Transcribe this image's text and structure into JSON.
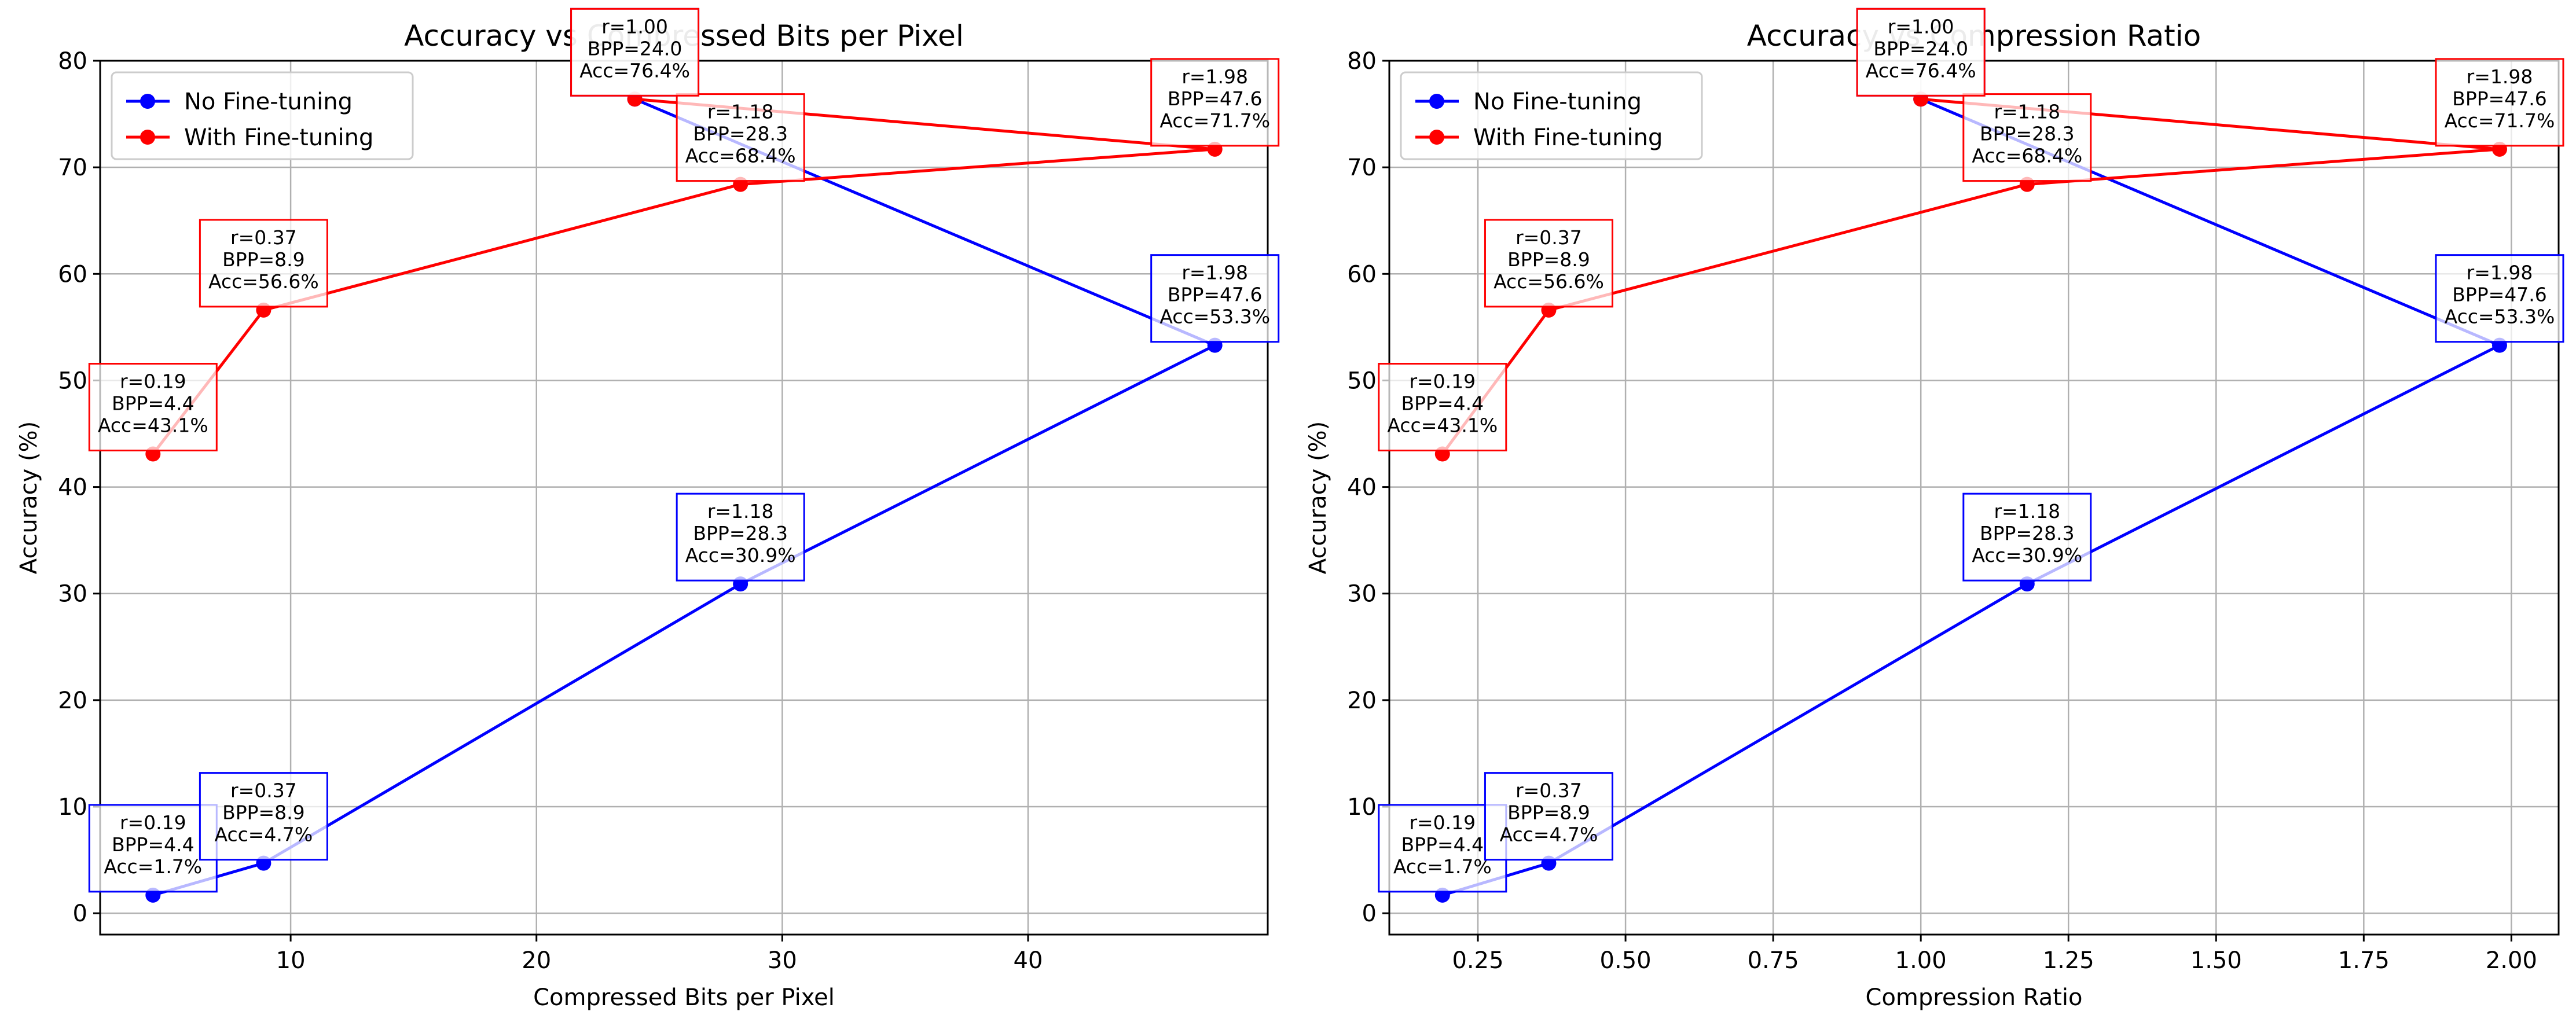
{
  "colors": {
    "no_finetune": "#0000ff",
    "with_finetune": "#ff0000",
    "grid": "#b0b0b0",
    "axes": "#000000"
  },
  "chart_data": [
    {
      "type": "line",
      "title": "Accuracy vs Compressed Bits per Pixel",
      "xlabel": "Compressed Bits per Pixel",
      "ylabel": "Accuracy (%)",
      "xlim": [
        2.25,
        49.75
      ],
      "ylim": [
        -2,
        80
      ],
      "xticks": [
        10,
        20,
        30,
        40
      ],
      "yticks": [
        0,
        10,
        20,
        30,
        40,
        50,
        60,
        70,
        80
      ],
      "grid": true,
      "legend_position": "upper-left",
      "series": [
        {
          "name": "No Fine-tuning",
          "color": "#0000ff",
          "x": [
            4.4,
            8.9,
            28.3,
            47.6,
            24.0
          ],
          "y": [
            1.7,
            4.7,
            30.9,
            53.3,
            76.4
          ],
          "annotations": [
            [
              "r=0.19",
              "BPP=4.4",
              "Acc=1.7%"
            ],
            [
              "r=0.37",
              "BPP=8.9",
              "Acc=4.7%"
            ],
            [
              "r=1.18",
              "BPP=28.3",
              "Acc=30.9%"
            ],
            [
              "r=1.98",
              "BPP=47.6",
              "Acc=53.3%"
            ],
            [
              "r=1.00",
              "BPP=24.0",
              "Acc=76.4%"
            ]
          ]
        },
        {
          "name": "With Fine-tuning",
          "color": "#ff0000",
          "x": [
            4.4,
            8.9,
            28.3,
            47.6,
            24.0
          ],
          "y": [
            43.1,
            56.6,
            68.4,
            71.7,
            76.4
          ],
          "annotations": [
            [
              "r=0.19",
              "BPP=4.4",
              "Acc=43.1%"
            ],
            [
              "r=0.37",
              "BPP=8.9",
              "Acc=56.6%"
            ],
            [
              "r=1.18",
              "BPP=28.3",
              "Acc=68.4%"
            ],
            [
              "r=1.98",
              "BPP=47.6",
              "Acc=71.7%"
            ],
            [
              "r=1.00",
              "BPP=24.0",
              "Acc=76.4%"
            ]
          ]
        }
      ]
    },
    {
      "type": "line",
      "title": "Accuracy vs Compression Ratio",
      "xlabel": "Compression Ratio",
      "ylabel": "Accuracy (%)",
      "xlim": [
        0.1,
        2.08
      ],
      "ylim": [
        -2,
        80
      ],
      "xticks": [
        0.25,
        0.5,
        0.75,
        1.0,
        1.25,
        1.5,
        1.75,
        2.0
      ],
      "xtick_labels": [
        "0.25",
        "0.50",
        "0.75",
        "1.00",
        "1.25",
        "1.50",
        "1.75",
        "2.00"
      ],
      "yticks": [
        0,
        10,
        20,
        30,
        40,
        50,
        60,
        70,
        80
      ],
      "grid": true,
      "legend_position": "upper-left",
      "series": [
        {
          "name": "No Fine-tuning",
          "color": "#0000ff",
          "x": [
            0.19,
            0.37,
            1.18,
            1.98,
            1.0
          ],
          "y": [
            1.7,
            4.7,
            30.9,
            53.3,
            76.4
          ],
          "annotations": [
            [
              "r=0.19",
              "BPP=4.4",
              "Acc=1.7%"
            ],
            [
              "r=0.37",
              "BPP=8.9",
              "Acc=4.7%"
            ],
            [
              "r=1.18",
              "BPP=28.3",
              "Acc=30.9%"
            ],
            [
              "r=1.98",
              "BPP=47.6",
              "Acc=53.3%"
            ],
            [
              "r=1.00",
              "BPP=24.0",
              "Acc=76.4%"
            ]
          ]
        },
        {
          "name": "With Fine-tuning",
          "color": "#ff0000",
          "x": [
            0.19,
            0.37,
            1.18,
            1.98,
            1.0
          ],
          "y": [
            43.1,
            56.6,
            68.4,
            71.7,
            76.4
          ],
          "annotations": [
            [
              "r=0.19",
              "BPP=4.4",
              "Acc=43.1%"
            ],
            [
              "r=0.37",
              "BPP=8.9",
              "Acc=56.6%"
            ],
            [
              "r=1.18",
              "BPP=28.3",
              "Acc=68.4%"
            ],
            [
              "r=1.98",
              "BPP=47.6",
              "Acc=71.7%"
            ],
            [
              "r=1.00",
              "BPP=24.0",
              "Acc=76.4%"
            ]
          ]
        }
      ]
    }
  ]
}
